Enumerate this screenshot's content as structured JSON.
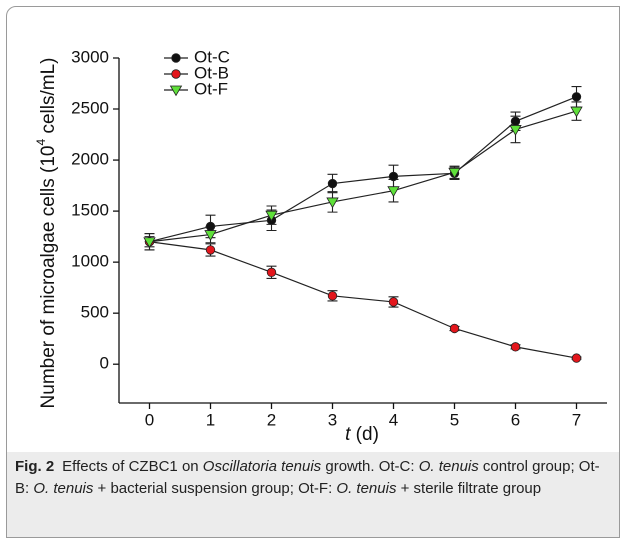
{
  "chart_data": {
    "type": "line",
    "x": [
      0,
      1,
      2,
      3,
      4,
      5,
      6,
      7
    ],
    "xlim": [
      -0.5,
      7.5
    ],
    "xticks": [
      0,
      1,
      2,
      3,
      4,
      5,
      6,
      7
    ],
    "ylim": [
      -380,
      3000
    ],
    "yticks": [
      0,
      500,
      1000,
      1500,
      2000,
      2500,
      3000
    ],
    "xlabel": [
      "t",
      " (d)"
    ],
    "ylabel": [
      "Number of microalgae cells (10",
      "4",
      " cells/mL)"
    ],
    "legend": "upper left",
    "series": [
      {
        "name": "Ot-C",
        "color": "#111111",
        "marker": "circle",
        "values": [
          1200,
          1350,
          1410,
          1770,
          1840,
          1870,
          2380,
          2620
        ],
        "errors": [
          80,
          110,
          100,
          90,
          110,
          60,
          90,
          100
        ]
      },
      {
        "name": "Ot-B",
        "color": "#e3161c",
        "marker": "circle",
        "values": [
          1200,
          1120,
          900,
          670,
          610,
          350,
          170,
          60
        ],
        "errors": [
          50,
          60,
          60,
          50,
          50,
          20,
          20,
          10
        ]
      },
      {
        "name": "Ot-F",
        "color": "#5fe03a",
        "marker": "triangle-down",
        "values": [
          1200,
          1270,
          1460,
          1590,
          1700,
          1880,
          2300,
          2480
        ],
        "errors": [
          80,
          80,
          90,
          100,
          110,
          60,
          130,
          90
        ]
      }
    ]
  },
  "caption": {
    "label": "Fig. 2",
    "parts": [
      "Effects of CZBC1 on ",
      "Oscillatoria tenuis",
      " growth. Ot-C: ",
      "O. tenuis",
      " control group; Ot-B: ",
      "O. tenuis",
      " + bacterial suspension group; Ot-F: ",
      "O. tenuis",
      " + sterile filtrate group"
    ]
  }
}
